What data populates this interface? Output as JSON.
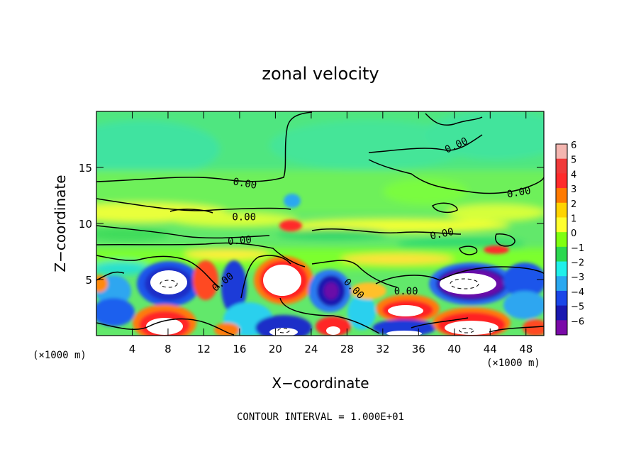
{
  "chart_data": {
    "type": "heatmap",
    "title": "zonal velocity",
    "xlabel": "X−coordinate",
    "ylabel": "Z−coordinate",
    "x_unit": "(×1000 m)",
    "y_unit": "(×1000 m)",
    "xlim": [
      0,
      50
    ],
    "ylim": [
      0,
      20
    ],
    "x_ticks": [
      4,
      8,
      12,
      16,
      20,
      24,
      28,
      32,
      36,
      40,
      44,
      48
    ],
    "y_ticks": [
      5,
      10,
      15
    ],
    "colorbar": {
      "levels": [
        6,
        5,
        4,
        3,
        2,
        1,
        0,
        -1,
        -2,
        -3,
        -4,
        -5,
        -6
      ],
      "labels": [
        "6",
        "5",
        "4",
        "3",
        "2",
        "1",
        "0",
        "−1",
        "−2",
        "−3",
        "−4",
        "−5",
        "−6"
      ],
      "colors": [
        "#f4b6b0",
        "#f03a3a",
        "#ff2b2b",
        "#ff7a00",
        "#ffd400",
        "#ffff2e",
        "#7fff10",
        "#2bd84f",
        "#20f0ea",
        "#2aa8f0",
        "#1a46e8",
        "#1a18b0",
        "#7a0aa8"
      ]
    },
    "contour_labels": [
      {
        "text": "0.00",
        "x": 16.6,
        "y": 13.6,
        "angle": 10
      },
      {
        "text": "0.00",
        "x": 16.5,
        "y": 10.6,
        "angle": 0
      },
      {
        "text": "0.00",
        "x": 16.0,
        "y": 8.5,
        "angle": -5
      },
      {
        "text": "0.00",
        "x": 14.1,
        "y": 4.8,
        "angle": -38
      },
      {
        "text": "0.00",
        "x": 28.8,
        "y": 4.2,
        "angle": 45
      },
      {
        "text": "0.00",
        "x": 34.6,
        "y": 4.0,
        "angle": 0
      },
      {
        "text": "0.00",
        "x": 40.2,
        "y": 17.0,
        "angle": -25
      },
      {
        "text": "0.00",
        "x": 38.6,
        "y": 9.1,
        "angle": -12
      },
      {
        "text": "0.00",
        "x": 47.2,
        "y": 12.8,
        "angle": -10
      }
    ],
    "contour_interval_text": "CONTOUR INTERVAL = 1.000E+01"
  }
}
